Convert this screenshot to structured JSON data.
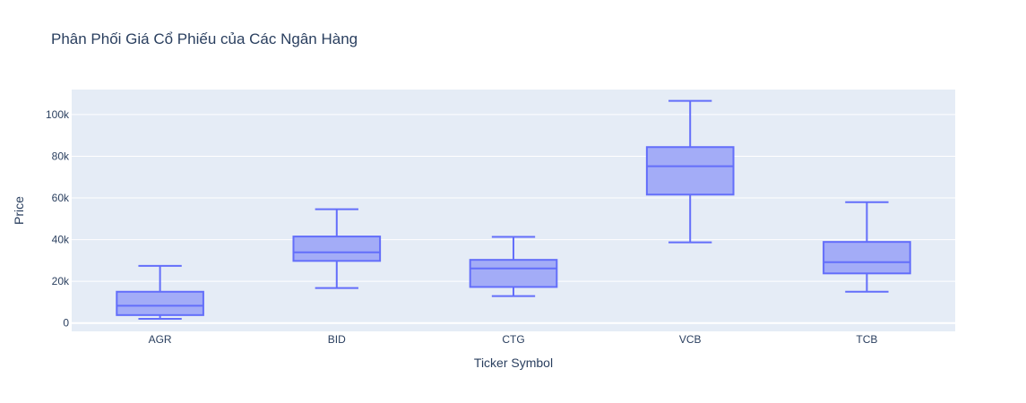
{
  "chart_data": {
    "type": "box",
    "title": "Phân Phối Giá Cổ Phiếu của Các Ngân Hàng",
    "xlabel": "Ticker Symbol",
    "ylabel": "Price",
    "categories": [
      "AGR",
      "BID",
      "CTG",
      "VCB",
      "TCB"
    ],
    "boxes": [
      {
        "category": "AGR",
        "min": 2000,
        "q1": 3800,
        "median": 8300,
        "q3": 15000,
        "max": 27400
      },
      {
        "category": "BID",
        "min": 16800,
        "q1": 29800,
        "median": 33900,
        "q3": 41500,
        "max": 54600
      },
      {
        "category": "CTG",
        "min": 12900,
        "q1": 17300,
        "median": 26200,
        "q3": 30300,
        "max": 41300
      },
      {
        "category": "VCB",
        "min": 38700,
        "q1": 61600,
        "median": 75200,
        "q3": 84400,
        "max": 106600
      },
      {
        "category": "TCB",
        "min": 15000,
        "q1": 23800,
        "median": 29200,
        "q3": 38900,
        "max": 58000
      }
    ],
    "ylim": [
      -4000,
      112000
    ],
    "yticks": [
      0,
      20000,
      40000,
      60000,
      80000,
      100000
    ],
    "ytick_labels": [
      "0",
      "20k",
      "40k",
      "60k",
      "80k",
      "100k"
    ],
    "grid": true,
    "legend": "none",
    "colors": {
      "plot_bg": "#e5ecf6",
      "grid": "#ffffff",
      "box_fill": "#a3acf7",
      "box_line": "#636efa",
      "text": "#2a3f5f"
    }
  }
}
